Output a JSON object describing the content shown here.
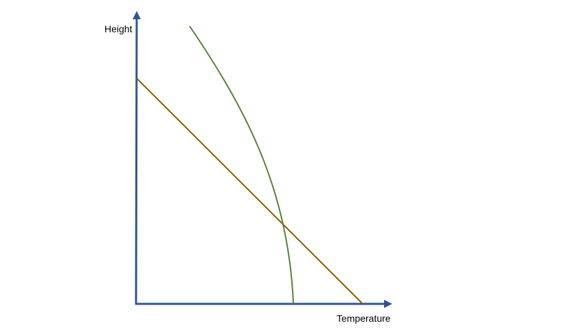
{
  "axes": {
    "x_label": "Temperature",
    "y_label": "Height",
    "axis_color": "#2F5597"
  },
  "curves": [
    {
      "id": "straight-line",
      "shape": "straight line",
      "color": "#806000"
    },
    {
      "id": "curved-line",
      "shape": "concave curve",
      "color": "#548235"
    }
  ]
}
